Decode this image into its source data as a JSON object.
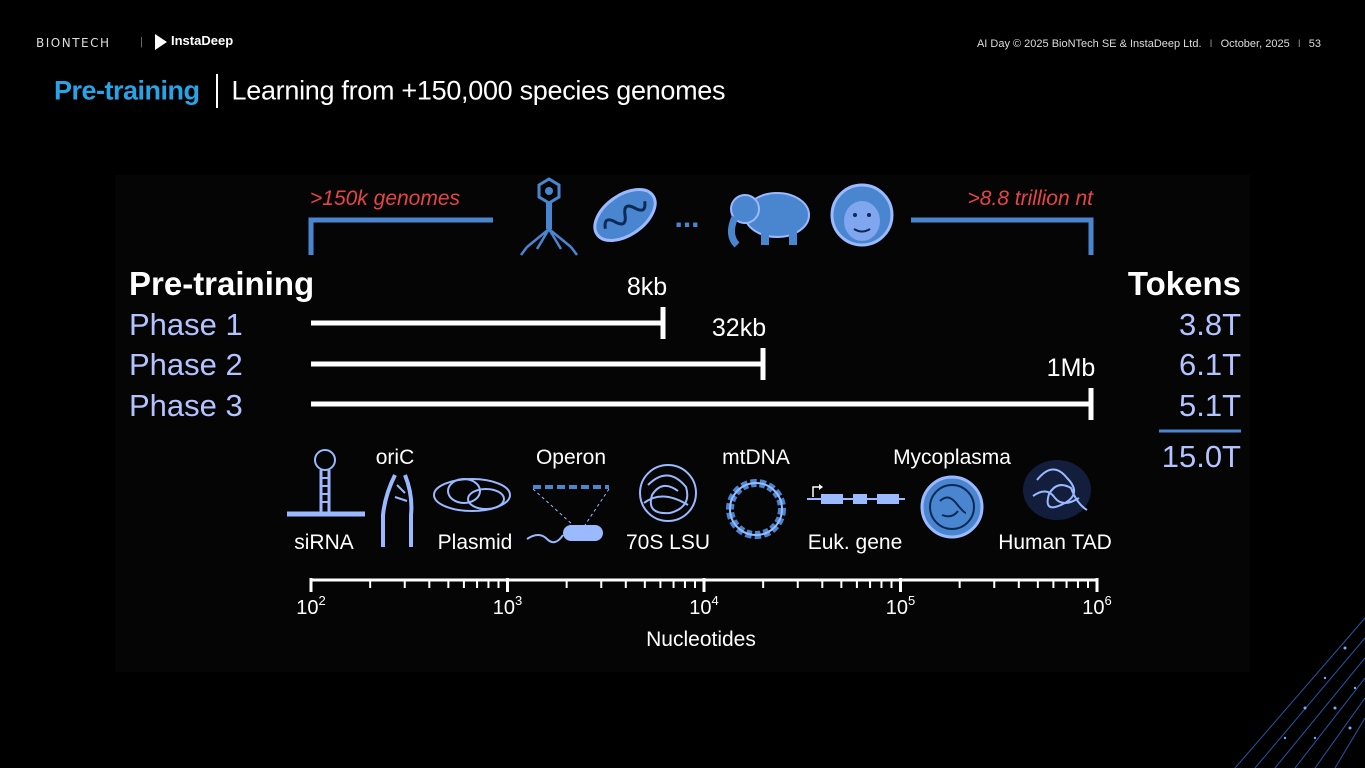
{
  "header": {
    "logo_left": "BIONTECH",
    "logo_right": "InstaDeep",
    "meta_event": "AI Day © 2025  BioNTech SE & InstaDeep Ltd.",
    "meta_date": "October, 2025",
    "meta_page": "53"
  },
  "title": {
    "accent": "Pre-training",
    "main": "Learning from +150,000 species genomes"
  },
  "diagram": {
    "genomes_label": ">150k genomes",
    "nt_label": ">8.8 trillion nt",
    "ellipsis": "...",
    "pretraining_heading": "Pre-training",
    "tokens_heading": "Tokens",
    "phases": [
      {
        "label": "Phase 1",
        "length_label": "8kb",
        "tokens": "3.8T"
      },
      {
        "label": "Phase 2",
        "length_label": "32kb",
        "tokens": "6.1T"
      },
      {
        "label": "Phase 3",
        "length_label": "1Mb",
        "tokens": "5.1T"
      }
    ],
    "tokens_total": "15.0T",
    "examples": [
      "siRNA",
      "oriC",
      "Plasmid",
      "Operon",
      "70S LSU",
      "mtDNA",
      "Euk. gene",
      "Mycoplasma",
      "Human TAD"
    ],
    "axis": {
      "ticks": [
        "10",
        "10",
        "10",
        "10",
        "10"
      ],
      "exponents": [
        "2",
        "3",
        "4",
        "5",
        "6"
      ],
      "label": "Nucleotides"
    },
    "colors": {
      "accent_blue": "#4a86d0",
      "red_label": "#e64545",
      "phase_text": "#b4c3ff",
      "title_blue": "#27a3e8"
    }
  }
}
